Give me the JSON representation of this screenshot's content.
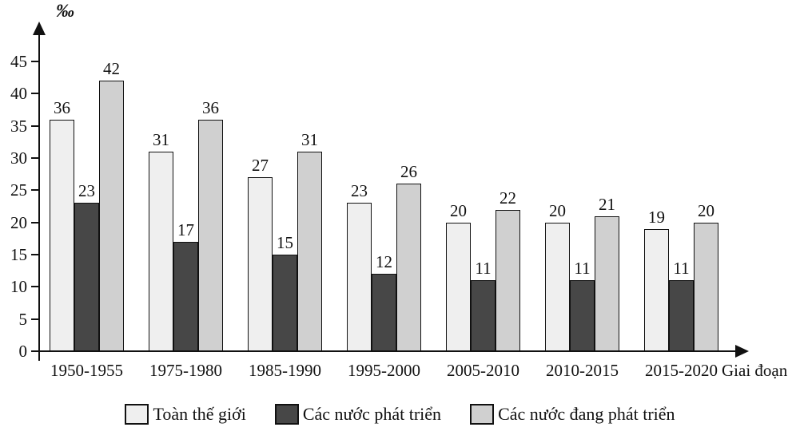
{
  "chart_data": {
    "type": "bar",
    "unit_label": "‰",
    "xlabel": "Giai đoạn",
    "categories": [
      "1950-1955",
      "1975-1980",
      "1985-1990",
      "1995-2000",
      "2005-2010",
      "2010-2015",
      "2015-2020"
    ],
    "series": [
      {
        "name": "Toàn thế giới",
        "color": "#efefef",
        "values": [
          36,
          31,
          27,
          23,
          20,
          20,
          19
        ]
      },
      {
        "name": "Các nước phát triển",
        "color": "#474747",
        "values": [
          23,
          17,
          15,
          12,
          11,
          11,
          11
        ]
      },
      {
        "name": "Các nước đang phát triển",
        "color": "#d0d0d0",
        "values": [
          42,
          36,
          31,
          26,
          22,
          21,
          20
        ]
      }
    ],
    "y_ticks": [
      0,
      5,
      10,
      15,
      20,
      25,
      30,
      35,
      40,
      45
    ],
    "ylim": [
      0,
      48
    ],
    "grid": false,
    "legend_position": "bottom",
    "bar_border_color": "#111111",
    "axis_color": "#111111"
  }
}
